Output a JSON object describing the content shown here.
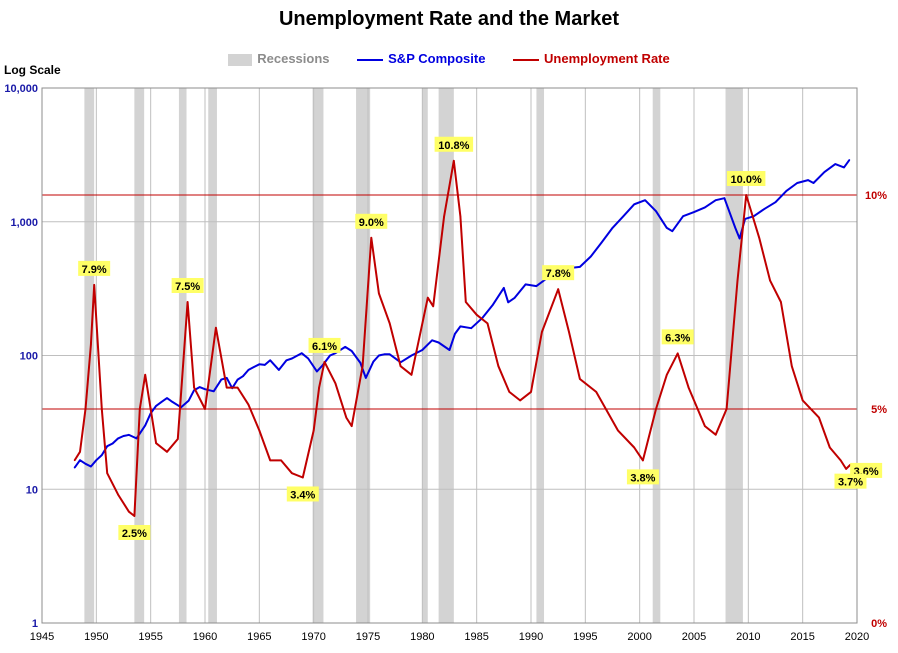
{
  "chart_data": {
    "type": "line",
    "title": "Unemployment Rate and the Market",
    "y_axis_note": "Log Scale",
    "legend": {
      "items": [
        {
          "label": "Recessions",
          "color": "#d3d3d3"
        },
        {
          "label": "S&P Composite",
          "color": "#0000e0"
        },
        {
          "label": "Unemployment Rate",
          "color": "#c00000"
        }
      ],
      "placement": "top-center"
    },
    "x_range": [
      1945,
      2020
    ],
    "x_ticks": [
      "1945",
      "1950",
      "1955",
      "1960",
      "1965",
      "1970",
      "1975",
      "1980",
      "1985",
      "1990",
      "1995",
      "2000",
      "2005",
      "2010",
      "2015",
      "2020"
    ],
    "y_left_scale": "log",
    "y_left_range": [
      1,
      10000
    ],
    "y_left_ticks": [
      {
        "value": 1,
        "label": "1"
      },
      {
        "value": 10,
        "label": "10"
      },
      {
        "value": 100,
        "label": "100"
      },
      {
        "value": 1000,
        "label": "1,000"
      },
      {
        "value": 10000,
        "label": "10,000"
      }
    ],
    "y_right_range": [
      0,
      12.5
    ],
    "y_right_ticks": [
      {
        "value": 0,
        "label": "0%"
      },
      {
        "value": 5,
        "label": "5%"
      },
      {
        "value": 10,
        "label": "10%"
      }
    ],
    "reference_lines_pct": [
      5,
      10
    ],
    "grid": true,
    "recessions": [
      [
        1948.9,
        1949.8
      ],
      [
        1953.5,
        1954.4
      ],
      [
        1957.6,
        1958.3
      ],
      [
        1960.3,
        1961.1
      ],
      [
        1969.9,
        1970.9
      ],
      [
        1973.9,
        1975.2
      ],
      [
        1980.0,
        1980.5
      ],
      [
        1981.5,
        1982.9
      ],
      [
        1990.5,
        1991.2
      ],
      [
        2001.2,
        2001.9
      ],
      [
        2007.9,
        2009.5
      ]
    ],
    "series": [
      {
        "name": "S&P Composite",
        "axis": "left",
        "points": [
          [
            1948.0,
            14.5
          ],
          [
            1948.5,
            16.5
          ],
          [
            1949.0,
            15.5
          ],
          [
            1949.5,
            14.8
          ],
          [
            1950.0,
            16.5
          ],
          [
            1950.5,
            18.0
          ],
          [
            1951.0,
            21.0
          ],
          [
            1951.5,
            22.0
          ],
          [
            1952.0,
            24.0
          ],
          [
            1952.5,
            25.0
          ],
          [
            1953.0,
            25.5
          ],
          [
            1953.7,
            24.0
          ],
          [
            1954.5,
            30.0
          ],
          [
            1955.0,
            37.0
          ],
          [
            1955.5,
            42.0
          ],
          [
            1956.0,
            45.0
          ],
          [
            1956.5,
            48.0
          ],
          [
            1957.0,
            45.0
          ],
          [
            1957.8,
            41.0
          ],
          [
            1958.5,
            46.0
          ],
          [
            1959.0,
            55.0
          ],
          [
            1959.5,
            58.0
          ],
          [
            1960.0,
            56.0
          ],
          [
            1960.8,
            54.0
          ],
          [
            1961.5,
            66.0
          ],
          [
            1962.0,
            68.0
          ],
          [
            1962.5,
            57.0
          ],
          [
            1963.0,
            66.0
          ],
          [
            1963.5,
            70.0
          ],
          [
            1964.0,
            78.0
          ],
          [
            1964.5,
            82.0
          ],
          [
            1965.0,
            86.0
          ],
          [
            1965.5,
            85.0
          ],
          [
            1966.0,
            92.0
          ],
          [
            1966.8,
            78.0
          ],
          [
            1967.5,
            92.0
          ],
          [
            1968.0,
            95.0
          ],
          [
            1968.9,
            104.0
          ],
          [
            1969.5,
            95.0
          ],
          [
            1970.3,
            76.0
          ],
          [
            1970.8,
            84.0
          ],
          [
            1971.5,
            100.0
          ],
          [
            1972.0,
            104.0
          ],
          [
            1972.9,
            116.0
          ],
          [
            1973.5,
            108.0
          ],
          [
            1974.3,
            88.0
          ],
          [
            1974.8,
            68.0
          ],
          [
            1975.5,
            90.0
          ],
          [
            1976.0,
            100.0
          ],
          [
            1976.5,
            102.0
          ],
          [
            1977.0,
            102.0
          ],
          [
            1978.0,
            89.0
          ],
          [
            1979.0,
            100.0
          ],
          [
            1980.0,
            110.0
          ],
          [
            1980.9,
            130.0
          ],
          [
            1981.5,
            125.0
          ],
          [
            1982.5,
            110.0
          ],
          [
            1983.0,
            145.0
          ],
          [
            1983.5,
            165.0
          ],
          [
            1984.5,
            160.0
          ],
          [
            1985.5,
            190.0
          ],
          [
            1986.5,
            240.0
          ],
          [
            1987.5,
            320.0
          ],
          [
            1987.9,
            250.0
          ],
          [
            1988.5,
            270.0
          ],
          [
            1989.5,
            340.0
          ],
          [
            1990.5,
            330.0
          ],
          [
            1991.5,
            380.0
          ],
          [
            1992.5,
            420.0
          ],
          [
            1993.5,
            450.0
          ],
          [
            1994.5,
            460.0
          ],
          [
            1995.5,
            550.0
          ],
          [
            1996.5,
            700.0
          ],
          [
            1997.5,
            900.0
          ],
          [
            1998.5,
            1100.0
          ],
          [
            1999.5,
            1350.0
          ],
          [
            2000.5,
            1450.0
          ],
          [
            2001.5,
            1200.0
          ],
          [
            2002.5,
            900.0
          ],
          [
            2003.0,
            850.0
          ],
          [
            2004.0,
            1100.0
          ],
          [
            2005.0,
            1180.0
          ],
          [
            2006.0,
            1280.0
          ],
          [
            2007.0,
            1450.0
          ],
          [
            2007.8,
            1500.0
          ],
          [
            2008.8,
            900.0
          ],
          [
            2009.2,
            750.0
          ],
          [
            2009.7,
            1050.0
          ],
          [
            2010.5,
            1100.0
          ],
          [
            2011.5,
            1250.0
          ],
          [
            2012.5,
            1400.0
          ],
          [
            2013.5,
            1700.0
          ],
          [
            2014.5,
            1950.0
          ],
          [
            2015.5,
            2050.0
          ],
          [
            2016.0,
            1950.0
          ],
          [
            2017.0,
            2350.0
          ],
          [
            2018.0,
            2700.0
          ],
          [
            2018.8,
            2550.0
          ],
          [
            2019.3,
            2900.0
          ]
        ]
      },
      {
        "name": "Unemployment Rate",
        "axis": "right",
        "points": [
          [
            1948.0,
            3.8
          ],
          [
            1948.5,
            4.0
          ],
          [
            1949.0,
            5.0
          ],
          [
            1949.5,
            6.5
          ],
          [
            1949.8,
            7.9
          ],
          [
            1950.5,
            5.0
          ],
          [
            1951.0,
            3.5
          ],
          [
            1952.0,
            3.0
          ],
          [
            1953.0,
            2.6
          ],
          [
            1953.5,
            2.5
          ],
          [
            1954.0,
            5.0
          ],
          [
            1954.5,
            5.8
          ],
          [
            1955.5,
            4.2
          ],
          [
            1956.5,
            4.0
          ],
          [
            1957.5,
            4.3
          ],
          [
            1958.4,
            7.5
          ],
          [
            1959.0,
            5.5
          ],
          [
            1960.0,
            5.0
          ],
          [
            1961.0,
            6.9
          ],
          [
            1962.0,
            5.5
          ],
          [
            1963.0,
            5.5
          ],
          [
            1964.0,
            5.1
          ],
          [
            1965.0,
            4.5
          ],
          [
            1966.0,
            3.8
          ],
          [
            1967.0,
            3.8
          ],
          [
            1968.0,
            3.5
          ],
          [
            1969.0,
            3.4
          ],
          [
            1970.0,
            4.5
          ],
          [
            1970.5,
            5.5
          ],
          [
            1971.0,
            6.1
          ],
          [
            1972.0,
            5.6
          ],
          [
            1973.0,
            4.8
          ],
          [
            1973.5,
            4.6
          ],
          [
            1974.5,
            6.0
          ],
          [
            1975.3,
            9.0
          ],
          [
            1976.0,
            7.7
          ],
          [
            1977.0,
            7.0
          ],
          [
            1978.0,
            6.0
          ],
          [
            1979.0,
            5.8
          ],
          [
            1980.5,
            7.6
          ],
          [
            1981.0,
            7.4
          ],
          [
            1982.0,
            9.5
          ],
          [
            1982.9,
            10.8
          ],
          [
            1983.5,
            9.5
          ],
          [
            1984.0,
            7.5
          ],
          [
            1985.0,
            7.2
          ],
          [
            1986.0,
            7.0
          ],
          [
            1987.0,
            6.0
          ],
          [
            1988.0,
            5.4
          ],
          [
            1989.0,
            5.2
          ],
          [
            1990.0,
            5.4
          ],
          [
            1991.0,
            6.8
          ],
          [
            1992.5,
            7.8
          ],
          [
            1993.5,
            6.8
          ],
          [
            1994.5,
            5.7
          ],
          [
            1996.0,
            5.4
          ],
          [
            1998.0,
            4.5
          ],
          [
            1999.5,
            4.1
          ],
          [
            2000.3,
            3.8
          ],
          [
            2001.5,
            5.0
          ],
          [
            2002.5,
            5.8
          ],
          [
            2003.5,
            6.3
          ],
          [
            2004.5,
            5.5
          ],
          [
            2006.0,
            4.6
          ],
          [
            2007.0,
            4.4
          ],
          [
            2008.0,
            5.0
          ],
          [
            2009.0,
            8.0
          ],
          [
            2009.8,
            10.0
          ],
          [
            2011.0,
            9.0
          ],
          [
            2012.0,
            8.0
          ],
          [
            2013.0,
            7.5
          ],
          [
            2014.0,
            6.0
          ],
          [
            2015.0,
            5.2
          ],
          [
            2016.5,
            4.8
          ],
          [
            2017.5,
            4.1
          ],
          [
            2018.5,
            3.8
          ],
          [
            2019.0,
            3.6
          ],
          [
            2019.4,
            3.7
          ]
        ]
      }
    ],
    "annotations": [
      {
        "label": "7.9%",
        "x": 1949.8,
        "y": 7.9,
        "pos": "above"
      },
      {
        "label": "2.5%",
        "x": 1953.5,
        "y": 2.5,
        "pos": "below"
      },
      {
        "label": "7.5%",
        "x": 1958.4,
        "y": 7.5,
        "pos": "above"
      },
      {
        "label": "3.4%",
        "x": 1969.0,
        "y": 3.4,
        "pos": "below"
      },
      {
        "label": "6.1%",
        "x": 1971.0,
        "y": 6.1,
        "pos": "above"
      },
      {
        "label": "9.0%",
        "x": 1975.3,
        "y": 9.0,
        "pos": "above"
      },
      {
        "label": "10.8%",
        "x": 1982.9,
        "y": 10.8,
        "pos": "above"
      },
      {
        "label": "7.8%",
        "x": 1992.5,
        "y": 7.8,
        "pos": "above"
      },
      {
        "label": "3.8%",
        "x": 2000.3,
        "y": 3.8,
        "pos": "below"
      },
      {
        "label": "6.3%",
        "x": 2003.5,
        "y": 6.3,
        "pos": "above"
      },
      {
        "label": "10.0%",
        "x": 2009.8,
        "y": 10.0,
        "pos": "above"
      },
      {
        "label": "3.6%",
        "x": 2019.0,
        "y": 3.6,
        "pos": "right"
      },
      {
        "label": "3.7%",
        "x": 2019.4,
        "y": 3.7,
        "pos": "below"
      }
    ]
  }
}
